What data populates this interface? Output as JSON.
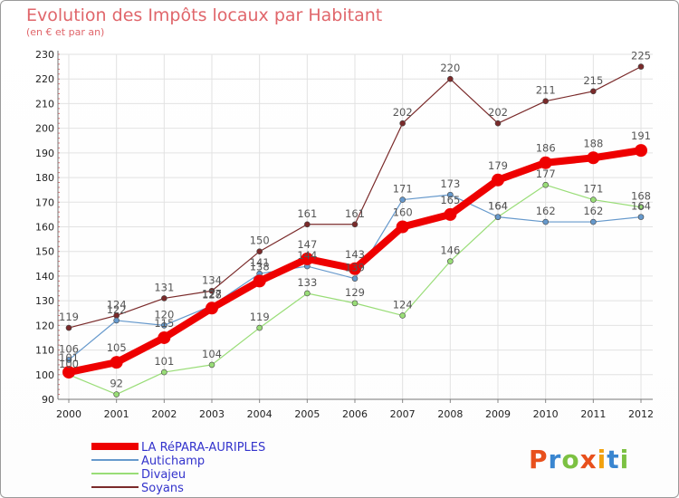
{
  "header": {
    "title": "Evolution des Impôts locaux par Habitant",
    "subtitle": "(en € et par an)"
  },
  "logo": {
    "text": "Proxiti",
    "letters": [
      "P",
      "r",
      "o",
      "x",
      "i",
      "t",
      "i"
    ],
    "colors": [
      "#e8501c",
      "#3a86d0",
      "#7cc142",
      "#e8501c",
      "#f2a20f",
      "#3a86d0",
      "#7cc142"
    ]
  },
  "chart_data": {
    "type": "line",
    "title": "Evolution des Impôts locaux par Habitant",
    "subtitle": "(en € et par an)",
    "x": [
      "2000",
      "2001",
      "2002",
      "2003",
      "2004",
      "2005",
      "2006",
      "2007",
      "2008",
      "2009",
      "2010",
      "2011",
      "2012"
    ],
    "ylim": [
      90,
      230
    ],
    "yticks": [
      90,
      100,
      110,
      120,
      130,
      140,
      150,
      160,
      170,
      180,
      190,
      200,
      210,
      220,
      230
    ],
    "grid": true,
    "legend_position": "bottom-left",
    "series": [
      {
        "name": "Soyans",
        "color": "#7a2a2a",
        "width": 1.2,
        "marker": 3,
        "values": [
          119,
          124,
          131,
          134,
          150,
          161,
          161,
          202,
          220,
          202,
          211,
          215,
          225
        ]
      },
      {
        "name": "Divajeu",
        "color": "#99dd77",
        "width": 1.2,
        "marker": 3,
        "values": [
          100,
          92,
          101,
          104,
          119,
          133,
          129,
          124,
          146,
          164,
          177,
          171,
          168
        ]
      },
      {
        "name": "Autichamp",
        "color": "#6699cc",
        "width": 1.2,
        "marker": 3,
        "values": [
          106,
          122,
          120,
          128,
          141,
          144,
          139,
          171,
          173,
          164,
          162,
          162,
          164
        ]
      },
      {
        "name": "LA RéPARA-AURIPLES",
        "color": "#ee0000",
        "width": 8,
        "marker": 7,
        "values": [
          101,
          105,
          115,
          127,
          138,
          147,
          143,
          160,
          165,
          179,
          186,
          188,
          191
        ]
      }
    ],
    "legend_order": [
      "LA RéPARA-AURIPLES",
      "Autichamp",
      "Divajeu",
      "Soyans"
    ]
  }
}
